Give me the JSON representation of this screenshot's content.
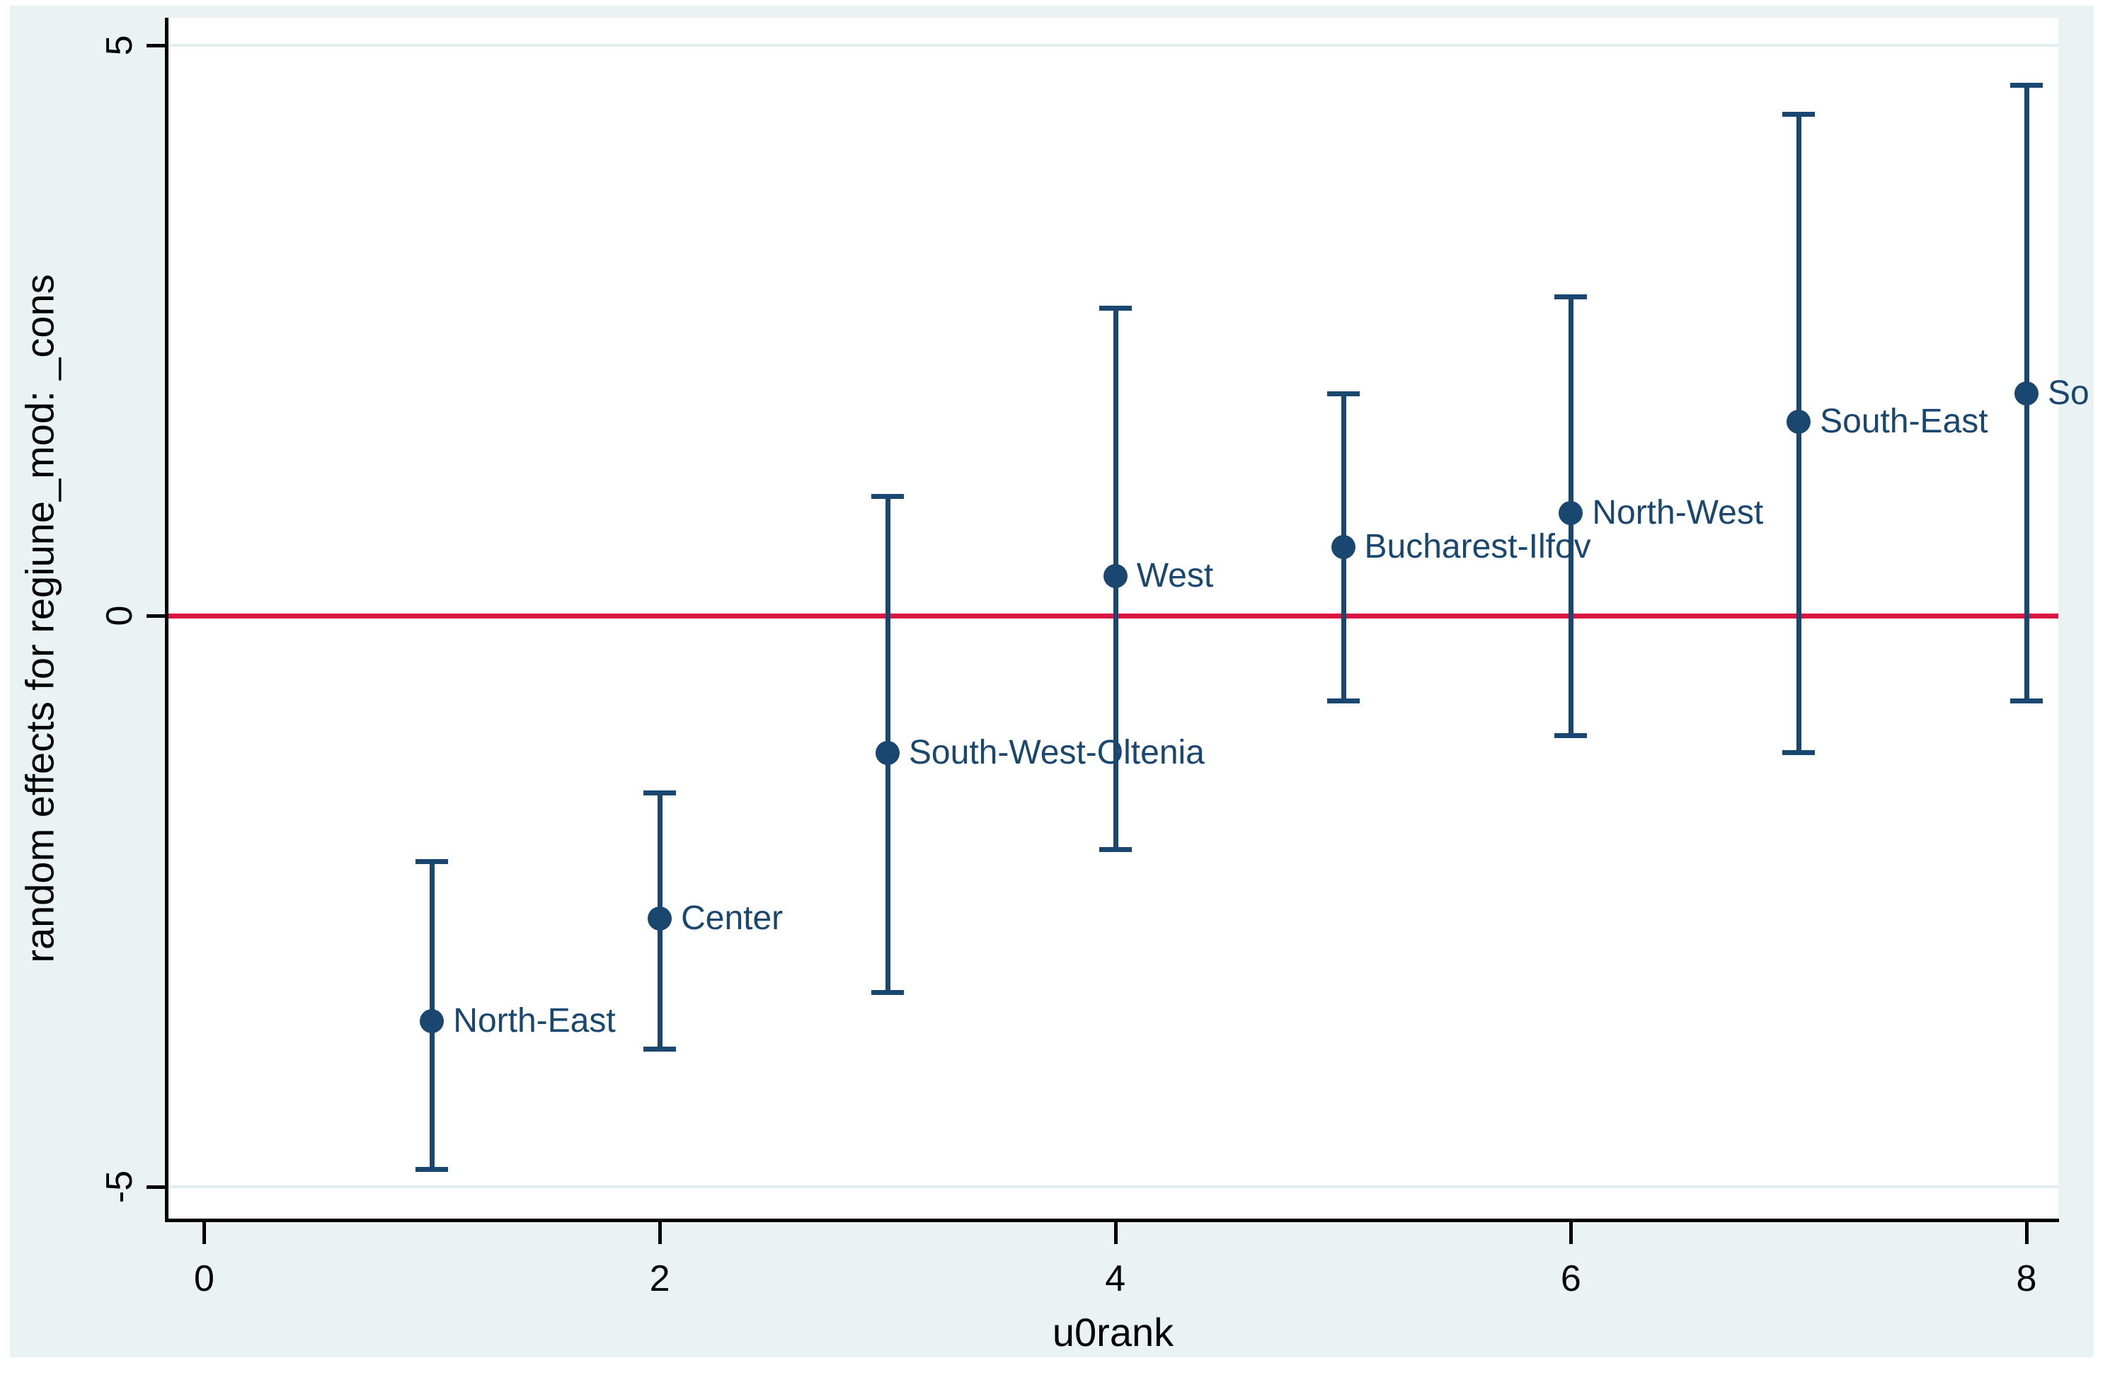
{
  "figure": {
    "background": "#eaf2f3",
    "plot_background": "#ffffff",
    "axis_color": "#000000",
    "grid_color": "#e3eef0",
    "series_color": "#1a476f",
    "refline_color": "#da1443",
    "text_color": "#000000"
  },
  "chart_data": {
    "type": "scatter",
    "subtype": "point-estimates-with-confidence-interval-error-bars (Stata caterpillar plot)",
    "title": "",
    "xlabel": "u0rank",
    "ylabel": "random effects for regiune_mod: _cons",
    "xticks": [
      0,
      2,
      4,
      6,
      8
    ],
    "yticks": [
      5,
      0,
      -5
    ],
    "grid_y": [
      5,
      -5
    ],
    "xlim": [
      -0.16,
      8.14
    ],
    "ylim": [
      -5.28,
      5.24
    ],
    "legend": "none",
    "refline_y": 0,
    "points": [
      {
        "x": 1,
        "label": "North-East",
        "est": -3.55,
        "lo": -4.85,
        "hi": -2.15,
        "clipped": false
      },
      {
        "x": 2,
        "label": "Center",
        "est": -2.65,
        "lo": -3.8,
        "hi": -1.55,
        "clipped": false
      },
      {
        "x": 3,
        "label": "South-West-Oltenia",
        "est": -1.2,
        "lo": -3.3,
        "hi": 1.05,
        "clipped": false
      },
      {
        "x": 4,
        "label": "West",
        "est": 0.35,
        "lo": -2.05,
        "hi": 2.7,
        "clipped": false
      },
      {
        "x": 5,
        "label": "Bucharest-Ilfov",
        "est": 0.6,
        "lo": -0.75,
        "hi": 1.95,
        "clipped": false
      },
      {
        "x": 6,
        "label": "North-West",
        "est": 0.9,
        "lo": -1.05,
        "hi": 2.8,
        "clipped": false
      },
      {
        "x": 7,
        "label": "South-East",
        "est": 1.7,
        "lo": -1.2,
        "hi": 4.4,
        "clipped": false
      },
      {
        "x": 8,
        "label": "So",
        "est": 1.95,
        "lo": -0.75,
        "hi": 4.65,
        "clipped": true
      }
    ]
  }
}
